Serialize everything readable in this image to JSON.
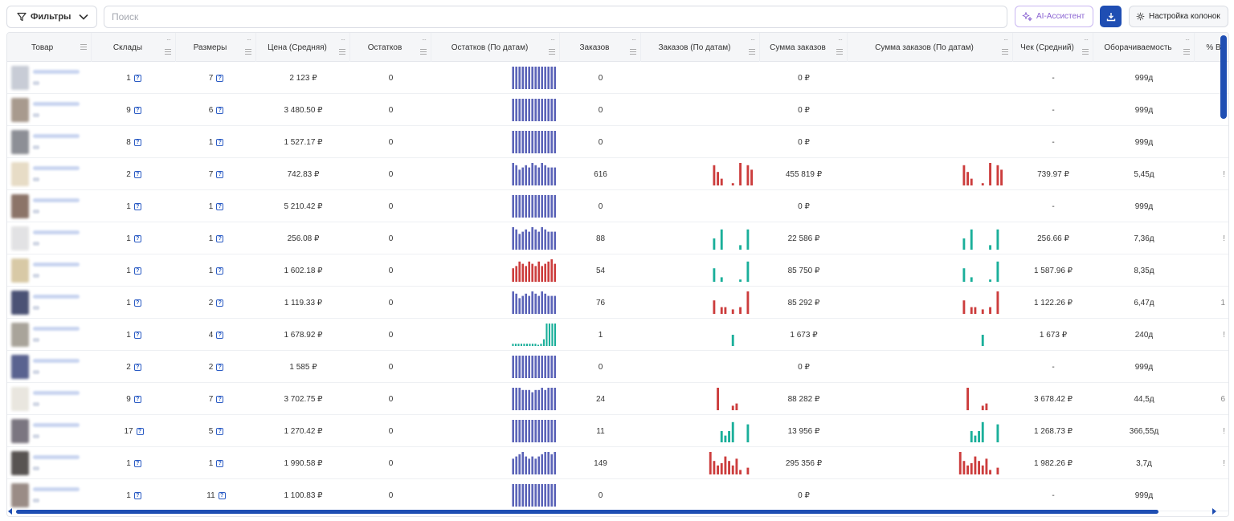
{
  "toolbar": {
    "filters_label": "Фильтры",
    "search_placeholder": "Поиск",
    "ai_label": "AI-Ассистент",
    "columns_label": "Настройка колонок"
  },
  "columns": [
    "Товар",
    "Склады",
    "Размеры",
    "Цена (Средняя)",
    "Остатков",
    "Остатков (По датам)",
    "Заказов",
    "Заказов (По датам)",
    "Сумма заказов",
    "Сумма заказов (По датам)",
    "Чек (Средний)",
    "Оборачиваемость",
    "% В"
  ],
  "help_glyph": "?",
  "colors": {
    "accent": "#1f4eb3",
    "spark_blue": "#5b63b8",
    "spark_red": "#cc3d3d",
    "spark_teal": "#1aaf9a",
    "ai_purple": "#8a63d2"
  },
  "rows": [
    {
      "warehouses": "1",
      "sizes": "7",
      "price": "2 123 ₽",
      "stock": "0",
      "stock_spark": "blue",
      "orders": "0",
      "orders_spark": "none",
      "orders_sum": "0 ₽",
      "check": "-",
      "turnover": "999д",
      "partial": "",
      "thumb": "#c8ccd6"
    },
    {
      "warehouses": "9",
      "sizes": "6",
      "price": "3 480.50 ₽",
      "stock": "0",
      "stock_spark": "blue",
      "orders": "0",
      "orders_spark": "none",
      "orders_sum": "0 ₽",
      "check": "-",
      "turnover": "999д",
      "partial": "",
      "thumb": "#a89a8e"
    },
    {
      "warehouses": "8",
      "sizes": "1",
      "price": "1 527.17 ₽",
      "stock": "0",
      "stock_spark": "blue",
      "orders": "0",
      "orders_spark": "none",
      "orders_sum": "0 ₽",
      "check": "-",
      "turnover": "999д",
      "partial": "",
      "thumb": "#8d8f96"
    },
    {
      "warehouses": "2",
      "sizes": "7",
      "price": "742.83 ₽",
      "stock": "0",
      "stock_spark": "blue-var",
      "orders": "616",
      "orders_spark": "red",
      "orders_sum": "455 819 ₽",
      "check": "739.97 ₽",
      "turnover": "5,45д",
      "partial": "!",
      "thumb": "#e7dcc6"
    },
    {
      "warehouses": "1",
      "sizes": "1",
      "price": "5 210.42 ₽",
      "stock": "0",
      "stock_spark": "blue",
      "orders": "0",
      "orders_spark": "none",
      "orders_sum": "0 ₽",
      "check": "-",
      "turnover": "999д",
      "partial": "",
      "thumb": "#8c7468"
    },
    {
      "warehouses": "1",
      "sizes": "1",
      "price": "256.08 ₽",
      "stock": "0",
      "stock_spark": "blue-var",
      "orders": "88",
      "orders_spark": "teal",
      "orders_sum": "22 586 ₽",
      "check": "256.66 ₽",
      "turnover": "7,36д",
      "partial": "!",
      "thumb": "#e2e2e4"
    },
    {
      "warehouses": "1",
      "sizes": "1",
      "price": "1 602.18 ₽",
      "stock": "0",
      "stock_spark": "red",
      "orders": "54",
      "orders_spark": "teal2",
      "orders_sum": "85 750 ₽",
      "check": "1 587.96 ₽",
      "turnover": "8,35д",
      "partial": "",
      "thumb": "#d8c9a6"
    },
    {
      "warehouses": "1",
      "sizes": "2",
      "price": "1 119.33 ₽",
      "stock": "0",
      "stock_spark": "blue-var",
      "orders": "76",
      "orders_spark": "red2",
      "orders_sum": "85 292 ₽",
      "check": "1 122.26 ₽",
      "turnover": "6,47д",
      "partial": "1",
      "thumb": "#4b5275"
    },
    {
      "warehouses": "1",
      "sizes": "4",
      "price": "1 678.92 ₽",
      "stock": "0",
      "stock_spark": "teal",
      "orders": "1",
      "orders_spark": "teal-one",
      "orders_sum": "1 673 ₽",
      "check": "1 673 ₽",
      "turnover": "240д",
      "partial": "!",
      "thumb": "#a9a49a"
    },
    {
      "warehouses": "2",
      "sizes": "2",
      "price": "1 585 ₽",
      "stock": "0",
      "stock_spark": "blue",
      "orders": "0",
      "orders_spark": "none",
      "orders_sum": "0 ₽",
      "check": "-",
      "turnover": "999д",
      "partial": "",
      "thumb": "#5a6390"
    },
    {
      "warehouses": "9",
      "sizes": "7",
      "price": "3 702.75 ₽",
      "stock": "0",
      "stock_spark": "blue-var2",
      "orders": "24",
      "orders_spark": "red3",
      "orders_sum": "88 282 ₽",
      "check": "3 678.42 ₽",
      "turnover": "44,5д",
      "partial": "6",
      "thumb": "#e9e6df"
    },
    {
      "warehouses": "17",
      "sizes": "5",
      "price": "1 270.42 ₽",
      "stock": "0",
      "stock_spark": "blue",
      "orders": "11",
      "orders_spark": "teal3",
      "orders_sum": "13 956 ₽",
      "check": "1 268.73 ₽",
      "turnover": "366,55д",
      "partial": "!",
      "thumb": "#7b7681"
    },
    {
      "warehouses": "1",
      "sizes": "1",
      "price": "1 990.58 ₽",
      "stock": "0",
      "stock_spark": "blue-var3",
      "orders": "149",
      "orders_spark": "red4",
      "orders_sum": "295 356 ₽",
      "check": "1 982.26 ₽",
      "turnover": "3,7д",
      "partial": "!",
      "thumb": "#585452"
    },
    {
      "warehouses": "1",
      "sizes": "11",
      "price": "1 100.83 ₽",
      "stock": "0",
      "stock_spark": "blue",
      "orders": "0",
      "orders_spark": "none",
      "orders_sum": "0 ₽",
      "check": "-",
      "turnover": "999д",
      "partial": "",
      "thumb": "#9a8c86"
    }
  ],
  "sparklines": {
    "blue": [
      10,
      10,
      10,
      10,
      10,
      10,
      10,
      10,
      10,
      10,
      10,
      10,
      10,
      10
    ],
    "blue-var": [
      10,
      9,
      7,
      8,
      9,
      8,
      10,
      9,
      8,
      10,
      9,
      8,
      8,
      8
    ],
    "blue-var2": [
      10,
      10,
      10,
      9,
      9,
      9,
      8,
      9,
      9,
      10,
      9,
      10,
      10,
      10
    ],
    "blue-var3": [
      7,
      8,
      9,
      10,
      8,
      7,
      8,
      7,
      8,
      9,
      10,
      10,
      9,
      10
    ],
    "red": [
      6,
      7,
      9,
      8,
      7,
      9,
      8,
      7,
      9,
      7,
      8,
      9,
      10,
      8
    ],
    "teal": [
      1,
      1,
      1,
      1,
      1,
      1,
      1,
      1,
      1,
      0,
      1,
      3,
      10,
      10,
      10,
      10
    ],
    "none": []
  },
  "order_sparklines": {
    "red": [
      0,
      9,
      6,
      3,
      0,
      0,
      1,
      0,
      10,
      0,
      9,
      7
    ],
    "teal": [
      0,
      5,
      0,
      9,
      0,
      0,
      0,
      0,
      2,
      0,
      9,
      0
    ],
    "teal2": [
      0,
      6,
      0,
      2,
      0,
      0,
      0,
      0,
      1,
      0,
      9,
      0
    ],
    "red2": [
      0,
      6,
      0,
      3,
      3,
      0,
      2,
      0,
      3,
      0,
      10,
      0
    ],
    "teal-one": [
      0,
      0,
      0,
      0,
      0,
      0,
      5,
      0,
      0,
      0,
      0,
      0
    ],
    "red3": [
      0,
      0,
      10,
      0,
      0,
      0,
      2,
      3,
      0,
      0,
      0,
      0
    ],
    "teal3": [
      0,
      0,
      0,
      5,
      3,
      5,
      9,
      0,
      0,
      0,
      8,
      0
    ],
    "red4": [
      10,
      6,
      4,
      5,
      8,
      6,
      4,
      7,
      2,
      0,
      3,
      0
    ]
  }
}
